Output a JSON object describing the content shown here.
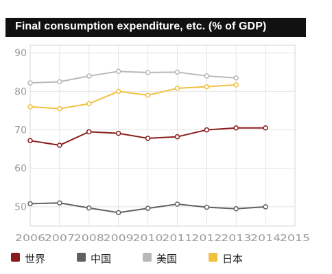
{
  "title": "Final consumption expenditure, etc. (% of GDP)",
  "chart_data": {
    "type": "line",
    "title": "Final consumption expenditure, etc. (% of GDP)",
    "x": [
      "2006",
      "2007",
      "2008",
      "2009",
      "2010",
      "2011",
      "2012",
      "2013",
      "2014",
      "2015"
    ],
    "ylim": [
      45,
      92
    ],
    "yticks": [
      50,
      60,
      70,
      80,
      90
    ],
    "grid": true,
    "legend_position": "bottom",
    "series": [
      {
        "name": "世界",
        "color": "#8b1a1a",
        "values": [
          67.2,
          66.0,
          69.5,
          69.1,
          67.8,
          68.2,
          70.0,
          70.5,
          70.5,
          null
        ]
      },
      {
        "name": "中国",
        "color": "#606060",
        "values": [
          50.8,
          51.0,
          49.7,
          48.5,
          49.6,
          50.7,
          49.9,
          49.5,
          50.0,
          null
        ]
      },
      {
        "name": "美国",
        "color": "#b8b8b8",
        "values": [
          82.2,
          82.5,
          84.0,
          85.2,
          84.9,
          85.0,
          84.0,
          83.5,
          null,
          null
        ]
      },
      {
        "name": "日本",
        "color": "#f0c040",
        "values": [
          76.0,
          75.5,
          76.8,
          80.0,
          79.0,
          80.8,
          81.2,
          81.7,
          null,
          null
        ]
      }
    ]
  }
}
